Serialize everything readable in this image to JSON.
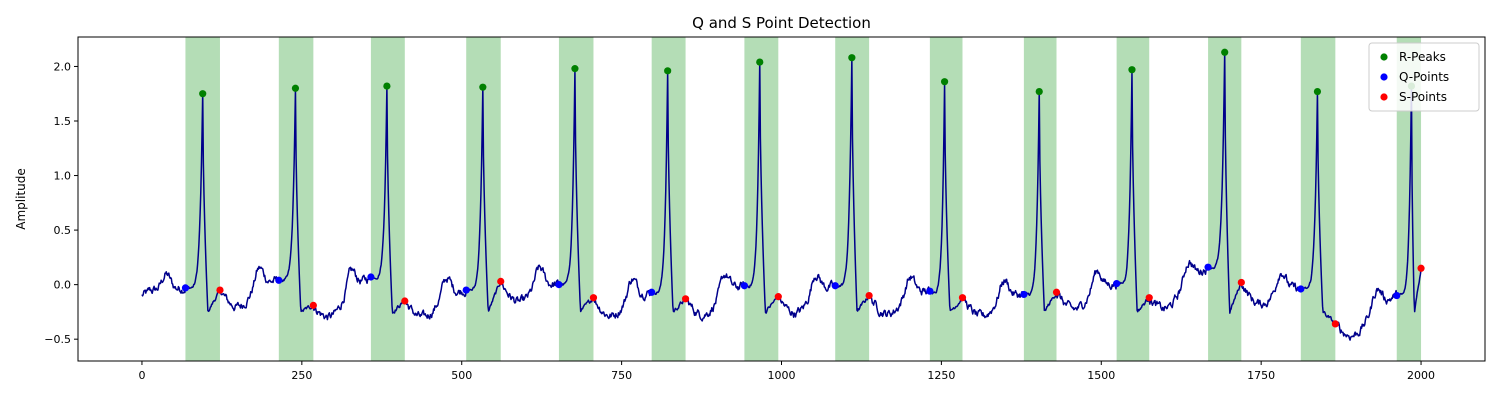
{
  "chart_data": {
    "type": "line",
    "title": "Q and S Point Detection",
    "xlabel": "",
    "ylabel": "Amplitude",
    "xlim": [
      -100,
      2100
    ],
    "ylim": [
      -0.7,
      2.27
    ],
    "xticks": [
      0,
      250,
      500,
      750,
      1000,
      1250,
      1500,
      1750,
      2000
    ],
    "yticks": [
      -0.5,
      0.0,
      0.5,
      1.0,
      1.5,
      2.0
    ],
    "ytick_labels": [
      "−0.5",
      "0.0",
      "0.5",
      "1.0",
      "1.5",
      "2.0"
    ],
    "grid": false,
    "legend_position": "top-right",
    "colors": {
      "signal": "#00008b",
      "r_peaks": "#008000",
      "q_points": "#0000ff",
      "s_points": "#ff0000",
      "qrs_region": "#4caf50"
    },
    "series": [
      {
        "name": "R-Peaks",
        "x": [
          95,
          240,
          383,
          533,
          677,
          822,
          966,
          1110,
          1255,
          1403,
          1548,
          1693,
          1838,
          1985
        ],
        "y": [
          1.75,
          1.8,
          1.82,
          1.81,
          1.98,
          1.96,
          2.04,
          2.08,
          1.86,
          1.77,
          1.97,
          2.13,
          1.77,
          1.82
        ]
      },
      {
        "name": "Q-Points",
        "x": [
          68,
          214,
          358,
          507,
          652,
          797,
          942,
          1084,
          1232,
          1379,
          1524,
          1667,
          1812,
          1962
        ],
        "y": [
          -0.03,
          0.04,
          0.07,
          -0.05,
          0.0,
          -0.07,
          -0.01,
          -0.01,
          -0.06,
          -0.09,
          0.01,
          0.16,
          -0.04,
          -0.1
        ]
      },
      {
        "name": "S-Points",
        "x": [
          122,
          268,
          411,
          561,
          706,
          850,
          995,
          1137,
          1283,
          1430,
          1575,
          1719,
          1866,
          2000
        ],
        "y": [
          -0.05,
          -0.19,
          -0.15,
          0.03,
          -0.12,
          -0.13,
          -0.11,
          -0.1,
          -0.12,
          -0.07,
          -0.12,
          0.02,
          -0.36,
          0.15
        ]
      }
    ],
    "qrs_regions": [
      [
        68,
        122
      ],
      [
        214,
        268
      ],
      [
        358,
        411
      ],
      [
        507,
        561
      ],
      [
        652,
        706
      ],
      [
        797,
        850
      ],
      [
        942,
        995
      ],
      [
        1084,
        1137
      ],
      [
        1232,
        1283
      ],
      [
        1379,
        1430
      ],
      [
        1524,
        1575
      ],
      [
        1667,
        1719
      ],
      [
        1812,
        1866
      ],
      [
        1962,
        2000
      ]
    ],
    "signal_x_range": [
      0,
      2000
    ]
  }
}
